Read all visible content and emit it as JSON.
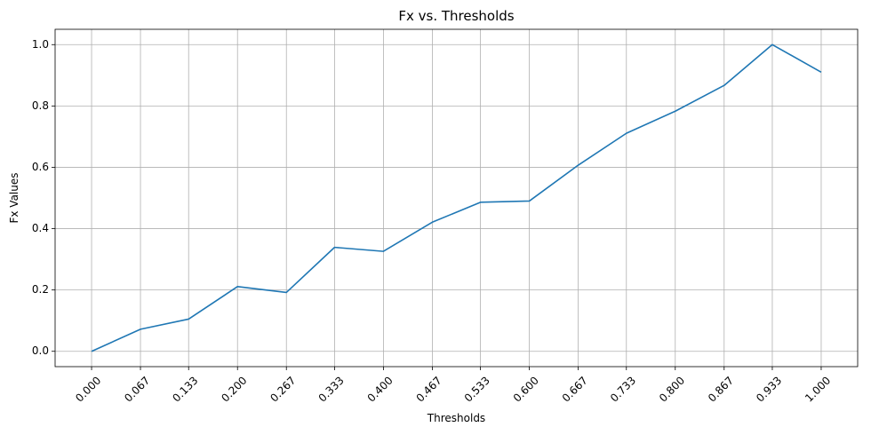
{
  "chart_data": {
    "type": "line",
    "title": "Fx vs. Thresholds",
    "xlabel": "Thresholds",
    "ylabel": "Fx Values",
    "x": [
      0.0,
      0.067,
      0.133,
      0.2,
      0.267,
      0.333,
      0.4,
      0.467,
      0.533,
      0.6,
      0.667,
      0.733,
      0.8,
      0.867,
      0.933,
      1.0
    ],
    "x_tick_labels": [
      "0.000",
      "0.067",
      "0.133",
      "0.200",
      "0.267",
      "0.333",
      "0.400",
      "0.467",
      "0.533",
      "0.600",
      "0.667",
      "0.733",
      "0.800",
      "0.867",
      "0.933",
      "1.000"
    ],
    "y_ticks": [
      0.0,
      0.2,
      0.4,
      0.6,
      0.8,
      1.0
    ],
    "y_tick_labels": [
      "0.0",
      "0.2",
      "0.4",
      "0.6",
      "0.8",
      "1.0"
    ],
    "series": [
      {
        "values": [
          0.0,
          0.072,
          0.105,
          0.211,
          0.192,
          0.339,
          0.326,
          0.421,
          0.486,
          0.49,
          0.607,
          0.711,
          0.783,
          0.867,
          1.0,
          0.91
        ],
        "color": "#1f77b4"
      }
    ],
    "xlim": [
      -0.05,
      1.05
    ],
    "ylim": [
      -0.05,
      1.05
    ],
    "grid": true,
    "x_tick_rotation": 45
  }
}
